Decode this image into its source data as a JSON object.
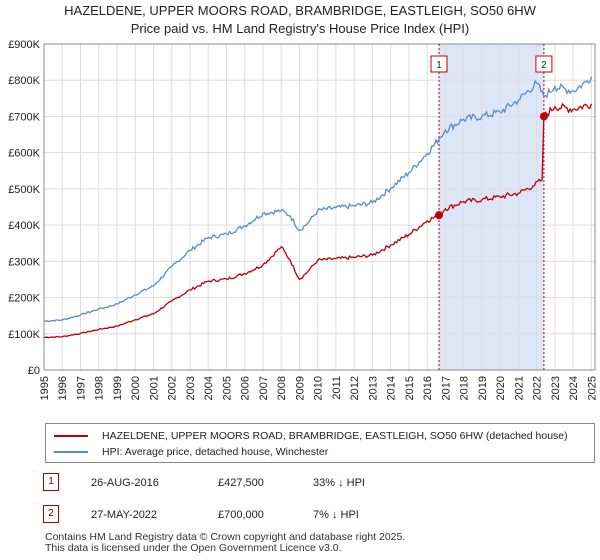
{
  "title_line1": "HAZELDENE, UPPER MOORS ROAD, BRAMBRIDGE, EASTLEIGH, SO50 6HW",
  "title_line2": "Price paid vs. HM Land Registry's House Price Index (HPI)",
  "colors": {
    "hpi": "#5b8cc8",
    "price": "#c00000",
    "shade": "#dde6f7",
    "marker": "#c00000",
    "grid": "#dddddd"
  },
  "chart_data": {
    "type": "line",
    "xlim": [
      1995,
      2025.2
    ],
    "ylim": [
      0,
      900000
    ],
    "x_ticks": [
      "1995",
      "1996",
      "1997",
      "1998",
      "1999",
      "2000",
      "2001",
      "2002",
      "2003",
      "2004",
      "2005",
      "2006",
      "2007",
      "2008",
      "2009",
      "2010",
      "2011",
      "2012",
      "2013",
      "2014",
      "2015",
      "2016",
      "2017",
      "2018",
      "2019",
      "2020",
      "2021",
      "2022",
      "2023",
      "2024",
      "2025"
    ],
    "y_ticks": [
      {
        "value": 0,
        "label": "£0"
      },
      {
        "value": 100000,
        "label": "£100K"
      },
      {
        "value": 200000,
        "label": "£200K"
      },
      {
        "value": 300000,
        "label": "£300K"
      },
      {
        "value": 400000,
        "label": "£400K"
      },
      {
        "value": 500000,
        "label": "£500K"
      },
      {
        "value": 600000,
        "label": "£600K"
      },
      {
        "value": 700000,
        "label": "£700K"
      },
      {
        "value": 800000,
        "label": "£800K"
      },
      {
        "value": 900000,
        "label": "£900K"
      }
    ],
    "shaded_range": [
      2016.65,
      2022.4
    ],
    "series": [
      {
        "name": "HPI: Average price, detached house, Winchester",
        "points": [
          [
            1995,
            135000
          ],
          [
            1996,
            138000
          ],
          [
            1997,
            152000
          ],
          [
            1998,
            168000
          ],
          [
            1999,
            182000
          ],
          [
            2000,
            208000
          ],
          [
            2001,
            232000
          ],
          [
            2002,
            285000
          ],
          [
            2003,
            330000
          ],
          [
            2004,
            365000
          ],
          [
            2005,
            375000
          ],
          [
            2006,
            398000
          ],
          [
            2007,
            432000
          ],
          [
            2008,
            440000
          ],
          [
            2008.5,
            425000
          ],
          [
            2009,
            385000
          ],
          [
            2009.5,
            408000
          ],
          [
            2010,
            440000
          ],
          [
            2011,
            448000
          ],
          [
            2012,
            453000
          ],
          [
            2013,
            462000
          ],
          [
            2014,
            502000
          ],
          [
            2015,
            545000
          ],
          [
            2016,
            598000
          ],
          [
            2016.65,
            638000
          ],
          [
            2017,
            662000
          ],
          [
            2018,
            692000
          ],
          [
            2019,
            700000
          ],
          [
            2020,
            712000
          ],
          [
            2021,
            745000
          ],
          [
            2022,
            792000
          ],
          [
            2022.4,
            755000
          ],
          [
            2023,
            782000
          ],
          [
            2024,
            770000
          ],
          [
            2024.7,
            795000
          ],
          [
            2025,
            810000
          ]
        ]
      },
      {
        "name": "HAZELDENE, UPPER MOORS ROAD, BRAMBRIDGE, EASTLEIGH, SO50 6HW (detached house)",
        "points": [
          [
            1995,
            90000
          ],
          [
            1996,
            92000
          ],
          [
            1997,
            101000
          ],
          [
            1998,
            112000
          ],
          [
            1999,
            121000
          ],
          [
            2000,
            139000
          ],
          [
            2001,
            155000
          ],
          [
            2002,
            190000
          ],
          [
            2003,
            221000
          ],
          [
            2004,
            245000
          ],
          [
            2005,
            251000
          ],
          [
            2006,
            266000
          ],
          [
            2007,
            290000
          ],
          [
            2008,
            340000
          ],
          [
            2008.5,
            302000
          ],
          [
            2009,
            250000
          ],
          [
            2009.5,
            274000
          ],
          [
            2010,
            303000
          ],
          [
            2011,
            307000
          ],
          [
            2012,
            311000
          ],
          [
            2013,
            317000
          ],
          [
            2014,
            345000
          ],
          [
            2015,
            374000
          ],
          [
            2016,
            412000
          ],
          [
            2016.65,
            427500
          ],
          [
            2017,
            445000
          ],
          [
            2018,
            465000
          ],
          [
            2019,
            470000
          ],
          [
            2020,
            478000
          ],
          [
            2021,
            488000
          ],
          [
            2021.8,
            508000
          ],
          [
            2022.3,
            525000
          ],
          [
            2022.4,
            700000
          ],
          [
            2023,
            727000
          ],
          [
            2024,
            720000
          ],
          [
            2025,
            735000
          ]
        ]
      }
    ],
    "annotations": [
      {
        "label": "1",
        "x": 2016.65,
        "y": 427500
      },
      {
        "label": "2",
        "x": 2022.4,
        "y": 700000
      }
    ]
  },
  "legend": {
    "price_label": "HAZELDENE, UPPER MOORS ROAD, BRAMBRIDGE, EASTLEIGH, SO50 6HW (detached house)",
    "hpi_label": "HPI: Average price, detached house, Winchester"
  },
  "transactions": [
    {
      "num": "1",
      "date": "26-AUG-2016",
      "price": "£427,500",
      "hpi": "33% ↓ HPI"
    },
    {
      "num": "2",
      "date": "27-MAY-2022",
      "price": "£700,000",
      "hpi": "7% ↓ HPI"
    }
  ],
  "footer": {
    "line1": "Contains HM Land Registry data © Crown copyright and database right 2025.",
    "line2": "This data is licensed under the Open Government Licence v3.0."
  }
}
